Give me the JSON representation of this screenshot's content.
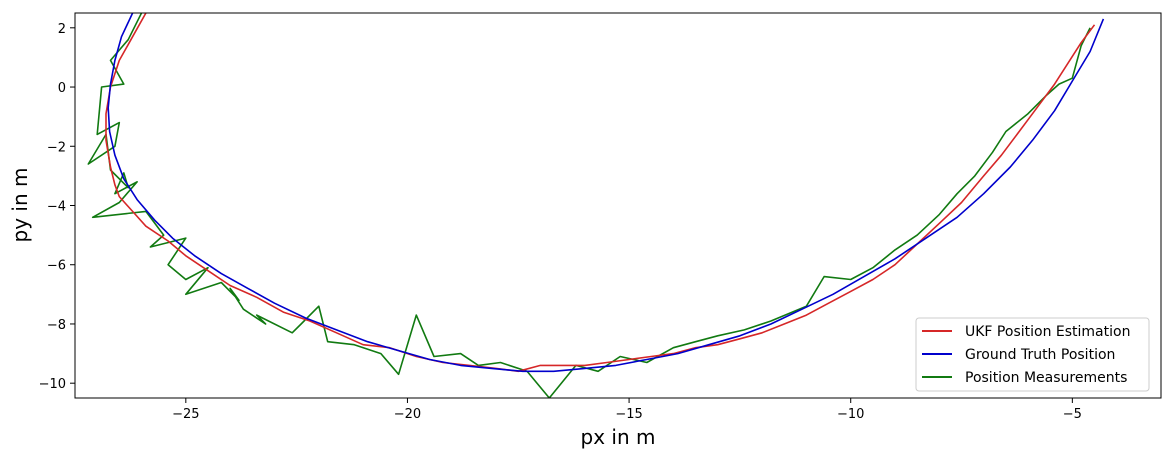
{
  "chart_data": {
    "type": "line",
    "title": "",
    "xlabel": "px in m",
    "ylabel": "py in m",
    "xlim": [
      -27.5,
      -3.0
    ],
    "ylim": [
      -10.5,
      2.5
    ],
    "xticks": [
      -25,
      -20,
      -15,
      -10,
      -5
    ],
    "yticks": [
      2,
      0,
      -2,
      -4,
      -6,
      -8,
      -10
    ],
    "xtick_labels": [
      "−25",
      "−20",
      "−15",
      "−10",
      "−5"
    ],
    "ytick_labels": [
      "2",
      "0",
      "−2",
      "−4",
      "−6",
      "−8",
      "−10"
    ],
    "grid": false,
    "legend_position": "lower-right",
    "series": [
      {
        "name": "UKF Position Estimation",
        "color": "#d62728",
        "x": [
          -25.9,
          -26.2,
          -26.5,
          -26.7,
          -26.8,
          -26.8,
          -26.7,
          -26.6,
          -26.5,
          -26.2,
          -25.9,
          -25.4,
          -25.0,
          -24.5,
          -24.0,
          -23.4,
          -22.8,
          -22.2,
          -21.6,
          -21.0,
          -20.4,
          -19.8,
          -19.2,
          -18.6,
          -18.0,
          -17.5,
          -17.0,
          -16.5,
          -16.0,
          -15.5,
          -15.0,
          -14.5,
          -14.0,
          -13.5,
          -13.0,
          -12.5,
          -12.0,
          -11.5,
          -11.0,
          -10.5,
          -10.0,
          -9.5,
          -9.0,
          -8.5,
          -8.0,
          -7.5,
          -7.0,
          -6.6,
          -6.2,
          -5.8,
          -5.4,
          -5.1,
          -4.8,
          -4.5
        ],
        "y": [
          2.5,
          1.7,
          0.9,
          0.0,
          -0.9,
          -1.8,
          -2.7,
          -3.3,
          -3.7,
          -4.2,
          -4.7,
          -5.2,
          -5.7,
          -6.2,
          -6.7,
          -7.1,
          -7.6,
          -7.9,
          -8.3,
          -8.7,
          -8.8,
          -9.1,
          -9.3,
          -9.4,
          -9.5,
          -9.6,
          -9.4,
          -9.4,
          -9.4,
          -9.3,
          -9.2,
          -9.1,
          -9.0,
          -8.8,
          -8.7,
          -8.5,
          -8.3,
          -8.0,
          -7.7,
          -7.3,
          -6.9,
          -6.5,
          -6.0,
          -5.3,
          -4.6,
          -3.9,
          -3.0,
          -2.3,
          -1.5,
          -0.7,
          0.1,
          0.8,
          1.5,
          2.1
        ]
      },
      {
        "name": "Ground Truth Position",
        "color": "#0000cc",
        "x": [
          -26.2,
          -26.45,
          -26.6,
          -26.7,
          -26.75,
          -26.72,
          -26.6,
          -26.4,
          -26.1,
          -25.7,
          -25.3,
          -24.8,
          -24.2,
          -23.6,
          -23.0,
          -22.3,
          -21.6,
          -20.9,
          -20.2,
          -19.5,
          -18.8,
          -18.1,
          -17.4,
          -16.7,
          -16.0,
          -15.3,
          -14.6,
          -13.9,
          -13.2,
          -12.5,
          -11.8,
          -11.1,
          -10.4,
          -9.7,
          -9.0,
          -8.3,
          -7.6,
          -7.0,
          -6.4,
          -5.9,
          -5.4,
          -5.0,
          -4.6,
          -4.3
        ],
        "y": [
          2.5,
          1.7,
          0.9,
          0.1,
          -0.7,
          -1.5,
          -2.3,
          -3.1,
          -3.8,
          -4.5,
          -5.1,
          -5.7,
          -6.3,
          -6.8,
          -7.3,
          -7.8,
          -8.2,
          -8.6,
          -8.9,
          -9.2,
          -9.4,
          -9.5,
          -9.6,
          -9.6,
          -9.5,
          -9.4,
          -9.2,
          -9.0,
          -8.7,
          -8.4,
          -8.0,
          -7.5,
          -7.0,
          -6.4,
          -5.8,
          -5.1,
          -4.4,
          -3.6,
          -2.7,
          -1.8,
          -0.8,
          0.2,
          1.2,
          2.3
        ]
      },
      {
        "name": "Position Measurements",
        "color": "#117a11",
        "x": [
          -26.0,
          -26.3,
          -26.7,
          -26.4,
          -26.9,
          -27.0,
          -26.5,
          -26.6,
          -27.2,
          -26.8,
          -26.7,
          -26.3,
          -26.4,
          -26.6,
          -26.1,
          -26.5,
          -27.1,
          -25.9,
          -25.5,
          -25.8,
          -25.0,
          -25.4,
          -25.0,
          -24.5,
          -25.0,
          -24.2,
          -23.8,
          -24.0,
          -23.7,
          -23.2,
          -23.4,
          -22.6,
          -22.4,
          -22.0,
          -21.8,
          -21.2,
          -20.6,
          -20.2,
          -19.8,
          -19.4,
          -18.8,
          -18.4,
          -17.9,
          -17.3,
          -16.8,
          -16.2,
          -15.7,
          -15.2,
          -14.6,
          -14.0,
          -13.5,
          -13.0,
          -12.4,
          -11.8,
          -11.0,
          -10.6,
          -10.0,
          -9.5,
          -9.0,
          -8.5,
          -8.0,
          -7.6,
          -7.2,
          -6.8,
          -6.5,
          -6.0,
          -5.6,
          -5.3,
          -5.0,
          -4.8,
          -4.6
        ],
        "y": [
          2.5,
          1.6,
          0.9,
          0.1,
          0.0,
          -1.6,
          -1.2,
          -2.0,
          -2.6,
          -1.6,
          -2.8,
          -3.4,
          -2.9,
          -3.6,
          -3.2,
          -3.9,
          -4.4,
          -4.2,
          -5.0,
          -5.4,
          -5.1,
          -6.0,
          -6.5,
          -6.1,
          -7.0,
          -6.6,
          -7.2,
          -6.8,
          -7.5,
          -8.0,
          -7.7,
          -8.3,
          -8.0,
          -7.4,
          -8.6,
          -8.7,
          -9.0,
          -9.7,
          -7.7,
          -9.1,
          -9.0,
          -9.4,
          -9.3,
          -9.6,
          -10.5,
          -9.4,
          -9.6,
          -9.1,
          -9.3,
          -8.8,
          -8.6,
          -8.4,
          -8.2,
          -7.9,
          -7.4,
          -6.4,
          -6.5,
          -6.1,
          -5.5,
          -5.0,
          -4.3,
          -3.6,
          -3.0,
          -2.2,
          -1.5,
          -0.9,
          -0.3,
          0.1,
          0.3,
          1.4,
          2.0
        ]
      }
    ]
  }
}
